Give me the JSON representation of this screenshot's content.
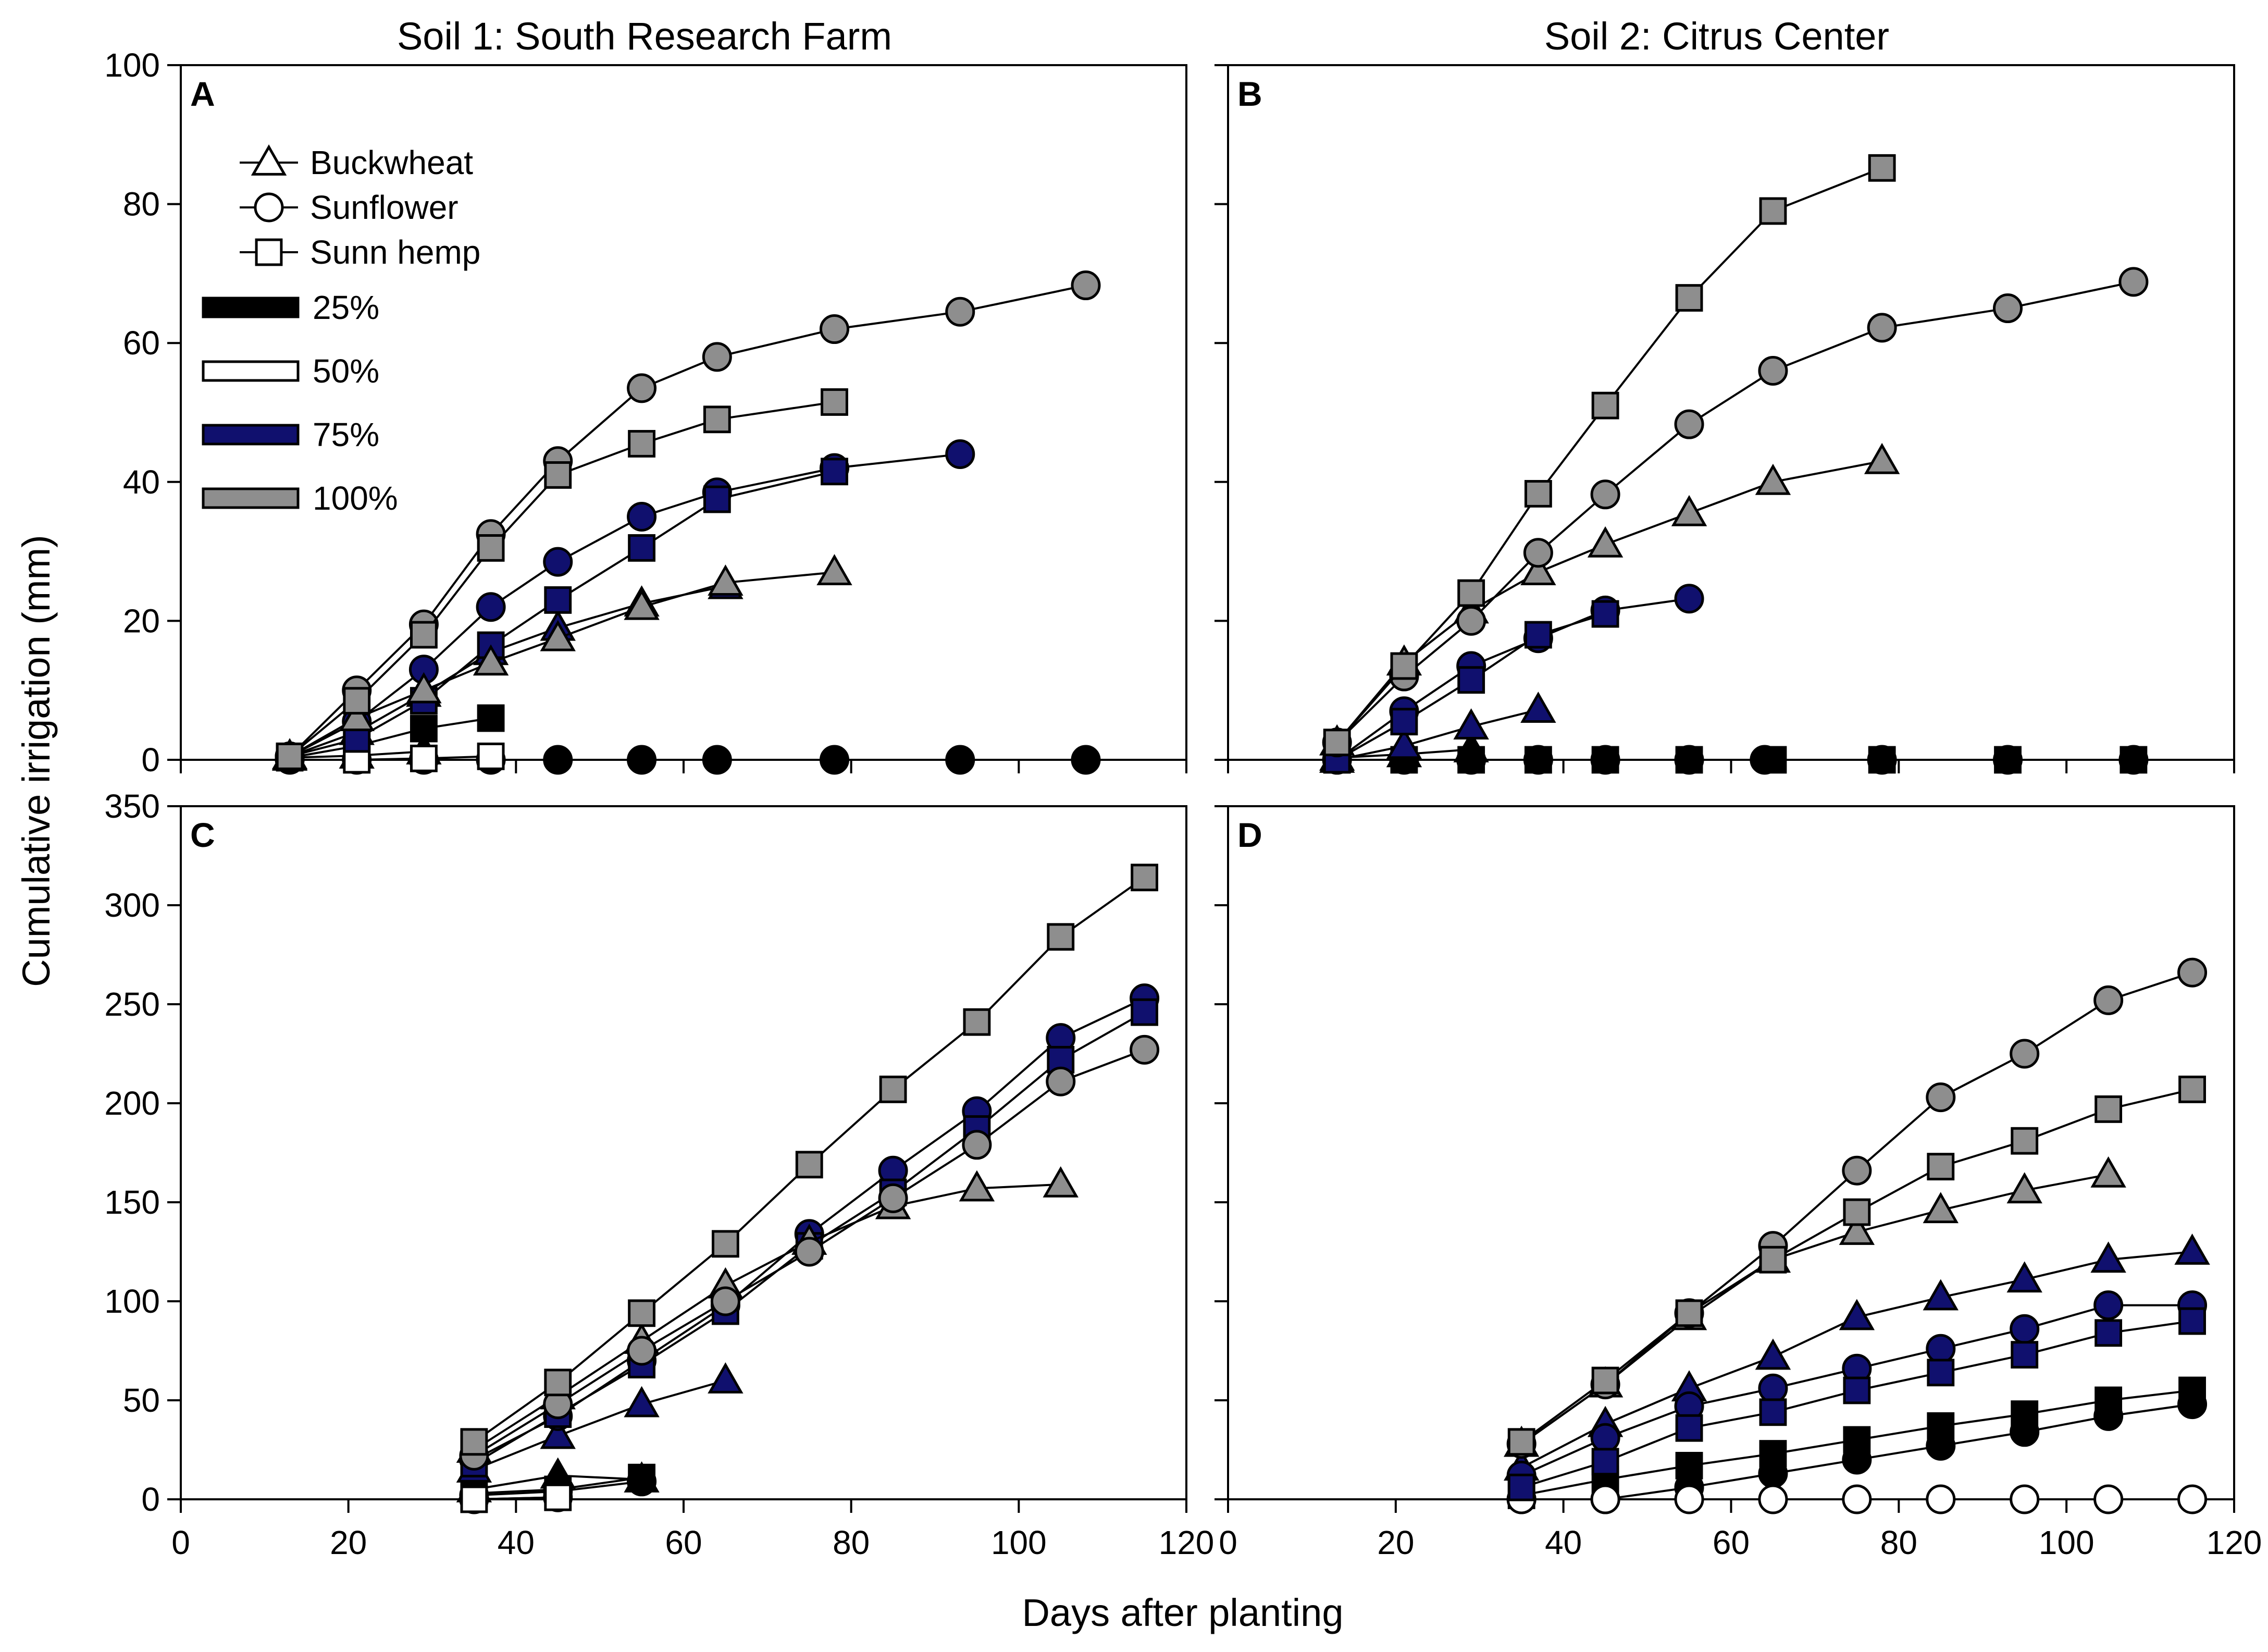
{
  "figure": {
    "ylabel": "Cumulative irrigation (mm)",
    "xlabel": "Days after planting",
    "col_titles": [
      "Soil 1: South Research Farm",
      "Soil 2: Citrus Center"
    ]
  },
  "legend": {
    "crops": [
      {
        "label": "Buckwheat",
        "marker": "triangle"
      },
      {
        "label": "Sunflower",
        "marker": "circle"
      },
      {
        "label": "Sunn hemp",
        "marker": "square"
      }
    ],
    "levels": [
      {
        "label": "25%",
        "color": "#000000"
      },
      {
        "label": "50%",
        "color": "#ffffff"
      },
      {
        "label": "75%",
        "color": "#10106e"
      },
      {
        "label": "100%",
        "color": "#8e8e8e"
      }
    ]
  },
  "chart_data": [
    {
      "panel": "A",
      "type": "line",
      "soil": "Soil 1: South Research Farm",
      "xlabel": "Days after planting",
      "ylabel": "Cumulative irrigation (mm)",
      "xlim": [
        0,
        120
      ],
      "ylim": [
        0,
        100
      ],
      "xticks": [
        0,
        20,
        40,
        60,
        80,
        100,
        120
      ],
      "yticks": [
        0,
        20,
        40,
        60,
        80,
        100
      ],
      "series": [
        {
          "crop": "Buckwheat",
          "level": "25%",
          "x": [
            13,
            21,
            29
          ],
          "y": [
            0.3,
            0.6,
            1.2
          ]
        },
        {
          "crop": "Sunflower",
          "level": "25%",
          "x": [
            13,
            21,
            29,
            37,
            45,
            55,
            64,
            78,
            93,
            108
          ],
          "y": [
            0,
            0,
            0,
            0,
            0,
            0,
            0,
            0,
            0,
            0
          ]
        },
        {
          "crop": "Sunn hemp",
          "level": "25%",
          "x": [
            13,
            21,
            29,
            37
          ],
          "y": [
            0.3,
            2,
            4.5,
            6
          ]
        },
        {
          "crop": "Sunn hemp",
          "level": "50%",
          "x": [
            21,
            29,
            37
          ],
          "y": [
            0,
            0.2,
            0.5
          ]
        },
        {
          "crop": "Buckwheat",
          "level": "75%",
          "x": [
            13,
            21,
            29,
            37,
            45,
            55,
            65
          ],
          "y": [
            0.5,
            4,
            9.5,
            15.5,
            19,
            22.5,
            25
          ]
        },
        {
          "crop": "Sunflower",
          "level": "75%",
          "x": [
            13,
            21,
            29,
            37,
            45,
            55,
            64,
            78,
            93
          ],
          "y": [
            0.5,
            5.5,
            13,
            22,
            28.5,
            35,
            38.5,
            42,
            44
          ]
        },
        {
          "crop": "Sunn hemp",
          "level": "75%",
          "x": [
            13,
            21,
            29,
            37,
            45,
            55,
            64,
            78
          ],
          "y": [
            0.5,
            3,
            8.5,
            16.5,
            23,
            30.5,
            37.5,
            41.5
          ]
        },
        {
          "crop": "Buckwheat",
          "level": "100%",
          "x": [
            13,
            21,
            29,
            37,
            45,
            55,
            65,
            78
          ],
          "y": [
            0.5,
            6,
            10,
            14,
            17.5,
            22,
            25.5,
            27
          ]
        },
        {
          "crop": "Sunflower",
          "level": "100%",
          "x": [
            13,
            21,
            29,
            37,
            45,
            55,
            64,
            78,
            93,
            108
          ],
          "y": [
            0.5,
            10,
            19.5,
            32.5,
            43,
            53.5,
            58,
            62,
            64.5,
            68.3
          ]
        },
        {
          "crop": "Sunn hemp",
          "level": "100%",
          "x": [
            13,
            21,
            29,
            37,
            45,
            55,
            64,
            78
          ],
          "y": [
            0.5,
            8.5,
            18,
            30.5,
            41,
            45.5,
            49,
            51.5
          ]
        }
      ]
    },
    {
      "panel": "B",
      "type": "line",
      "soil": "Soil 2: Citrus Center",
      "xlabel": "Days after planting",
      "ylabel": "Cumulative irrigation (mm)",
      "xlim": [
        0,
        120
      ],
      "ylim": [
        0,
        100
      ],
      "xticks": [
        0,
        20,
        40,
        60,
        80,
        100,
        120
      ],
      "yticks": [
        0,
        20,
        40,
        60,
        80,
        100
      ],
      "series": [
        {
          "crop": "Buckwheat",
          "level": "25%",
          "x": [
            13,
            21,
            29
          ],
          "y": [
            0.3,
            0.8,
            1.5
          ]
        },
        {
          "crop": "Sunflower",
          "level": "25%",
          "x": [
            13,
            21,
            29,
            37,
            45,
            55,
            64,
            78,
            93,
            108
          ],
          "y": [
            0,
            0,
            0,
            0,
            0,
            0,
            0,
            0,
            0,
            0
          ]
        },
        {
          "crop": "Sunn hemp",
          "level": "25%",
          "x": [
            13,
            21,
            29,
            37,
            45,
            55,
            65,
            78,
            93,
            108
          ],
          "y": [
            0,
            0,
            0,
            0,
            0,
            0,
            0,
            0,
            0,
            0
          ]
        },
        {
          "crop": "Buckwheat",
          "level": "75%",
          "x": [
            13,
            21,
            29,
            37
          ],
          "y": [
            0,
            2,
            4.8,
            7.2
          ]
        },
        {
          "crop": "Sunflower",
          "level": "75%",
          "x": [
            13,
            21,
            29,
            37,
            45,
            55
          ],
          "y": [
            0,
            7,
            13.5,
            17.5,
            21.5,
            23.2
          ]
        },
        {
          "crop": "Sunn hemp",
          "level": "75%",
          "x": [
            13,
            21,
            29,
            37,
            45
          ],
          "y": [
            0,
            5.5,
            11.5,
            18,
            21
          ]
        },
        {
          "crop": "Buckwheat",
          "level": "100%",
          "x": [
            13,
            21,
            29,
            37,
            45,
            55,
            65,
            78
          ],
          "y": [
            2.5,
            14,
            21.5,
            27,
            31,
            35.5,
            40,
            43
          ]
        },
        {
          "crop": "Sunflower",
          "level": "100%",
          "x": [
            13,
            21,
            29,
            37,
            45,
            55,
            65,
            78,
            93,
            108
          ],
          "y": [
            2.5,
            12,
            20,
            29.8,
            38.2,
            48.3,
            56,
            62.2,
            65,
            68.8
          ]
        },
        {
          "crop": "Sunn hemp",
          "level": "100%",
          "x": [
            13,
            21,
            29,
            37,
            45,
            55,
            65,
            78
          ],
          "y": [
            2.5,
            13.5,
            24,
            38.3,
            51,
            66.5,
            79,
            85.2
          ]
        }
      ]
    },
    {
      "panel": "C",
      "type": "line",
      "soil": "Soil 1: South Research Farm",
      "xlabel": "Days after planting",
      "ylabel": "Cumulative irrigation (mm)",
      "xlim": [
        0,
        120
      ],
      "ylim": [
        0,
        350
      ],
      "xticks": [
        0,
        20,
        40,
        60,
        80,
        100,
        120
      ],
      "yticks": [
        0,
        50,
        100,
        150,
        200,
        250,
        300,
        350
      ],
      "series": [
        {
          "crop": "Buckwheat",
          "level": "25%",
          "x": [
            35,
            45,
            55
          ],
          "y": [
            5,
            12,
            10
          ]
        },
        {
          "crop": "Sunflower",
          "level": "25%",
          "x": [
            35,
            45,
            55
          ],
          "y": [
            2,
            4,
            9
          ]
        },
        {
          "crop": "Sunn hemp",
          "level": "25%",
          "x": [
            35,
            45,
            55
          ],
          "y": [
            3,
            5,
            11
          ]
        },
        {
          "crop": "Sunflower",
          "level": "50%",
          "x": [
            35,
            45
          ],
          "y": [
            0,
            1
          ]
        },
        {
          "crop": "Sunn hemp",
          "level": "50%",
          "x": [
            35,
            45
          ],
          "y": [
            0,
            1
          ]
        },
        {
          "crop": "Buckwheat",
          "level": "75%",
          "x": [
            35,
            45,
            55,
            65
          ],
          "y": [
            15,
            32,
            48,
            60
          ]
        },
        {
          "crop": "Sunflower",
          "level": "75%",
          "x": [
            35,
            45,
            55,
            65,
            75,
            85,
            95,
            105,
            115
          ],
          "y": [
            20,
            42,
            70,
            98,
            134,
            166,
            196,
            233,
            253
          ]
        },
        {
          "crop": "Sunn hemp",
          "level": "75%",
          "x": [
            35,
            45,
            55,
            65,
            75,
            85,
            95,
            105,
            115
          ],
          "y": [
            18,
            43,
            68,
            95,
            128,
            155,
            187,
            222,
            246
          ]
        },
        {
          "crop": "Buckwheat",
          "level": "100%",
          "x": [
            35,
            45,
            55,
            65,
            75,
            85,
            95,
            105
          ],
          "y": [
            25,
            52,
            80,
            108,
            130,
            148,
            157,
            159
          ]
        },
        {
          "crop": "Sunflower",
          "level": "100%",
          "x": [
            35,
            45,
            55,
            65,
            75,
            85,
            95,
            105,
            115
          ],
          "y": [
            22,
            48,
            75,
            100,
            125,
            152,
            179,
            211,
            227
          ]
        },
        {
          "crop": "Sunn hemp",
          "level": "100%",
          "x": [
            35,
            45,
            55,
            65,
            75,
            85,
            95,
            105,
            115
          ],
          "y": [
            29,
            59,
            94,
            129,
            169,
            207,
            241,
            284,
            314
          ]
        }
      ]
    },
    {
      "panel": "D",
      "type": "line",
      "soil": "Soil 2: Citrus Center",
      "xlabel": "Days after planting",
      "ylabel": "Cumulative irrigation (mm)",
      "xlim": [
        0,
        120
      ],
      "ylim": [
        0,
        350
      ],
      "xticks": [
        0,
        20,
        40,
        60,
        80,
        100,
        120
      ],
      "yticks": [
        0,
        50,
        100,
        150,
        200,
        250,
        300,
        350
      ],
      "series": [
        {
          "crop": "Sunflower",
          "level": "25%",
          "x": [
            35,
            45,
            55,
            65,
            75,
            85,
            95,
            105,
            115
          ],
          "y": [
            0,
            0,
            6,
            13,
            20,
            27,
            34,
            42,
            48
          ]
        },
        {
          "crop": "Sunn hemp",
          "level": "25%",
          "x": [
            35,
            45,
            55,
            65,
            75,
            85,
            95,
            105,
            115
          ],
          "y": [
            2,
            10,
            17,
            23,
            30,
            37,
            43,
            50,
            55
          ]
        },
        {
          "crop": "Sunflower",
          "level": "50%",
          "x": [
            35,
            45,
            55,
            65,
            75,
            85,
            95,
            105,
            115
          ],
          "y": [
            0,
            0,
            0,
            0,
            0,
            0,
            0,
            0,
            0
          ]
        },
        {
          "crop": "Buckwheat",
          "level": "75%",
          "x": [
            35,
            45,
            55,
            65,
            75,
            85,
            95,
            105,
            115
          ],
          "y": [
            16,
            38,
            56,
            72,
            92,
            102,
            111,
            121,
            125
          ]
        },
        {
          "crop": "Sunflower",
          "level": "75%",
          "x": [
            35,
            45,
            55,
            65,
            75,
            85,
            95,
            105,
            115
          ],
          "y": [
            12,
            31,
            47,
            56,
            66,
            76,
            86,
            98,
            98
          ]
        },
        {
          "crop": "Sunn hemp",
          "level": "75%",
          "x": [
            35,
            45,
            55,
            65,
            75,
            85,
            95,
            105,
            115
          ],
          "y": [
            6,
            19,
            36,
            44,
            55,
            64,
            73,
            84,
            90
          ]
        },
        {
          "crop": "Buckwheat",
          "level": "100%",
          "x": [
            35,
            45,
            55,
            65,
            75,
            85,
            95,
            105
          ],
          "y": [
            28,
            58,
            92,
            121,
            135,
            146,
            156,
            164
          ]
        },
        {
          "crop": "Sunflower",
          "level": "100%",
          "x": [
            35,
            45,
            55,
            65,
            75,
            85,
            95,
            105,
            115
          ],
          "y": [
            28,
            58,
            94,
            128,
            166,
            203,
            225,
            252,
            266
          ]
        },
        {
          "crop": "Sunn hemp",
          "level": "100%",
          "x": [
            35,
            45,
            55,
            65,
            75,
            85,
            95,
            105,
            115
          ],
          "y": [
            29,
            60,
            94,
            121,
            145,
            168,
            181,
            197,
            207
          ]
        }
      ]
    }
  ]
}
